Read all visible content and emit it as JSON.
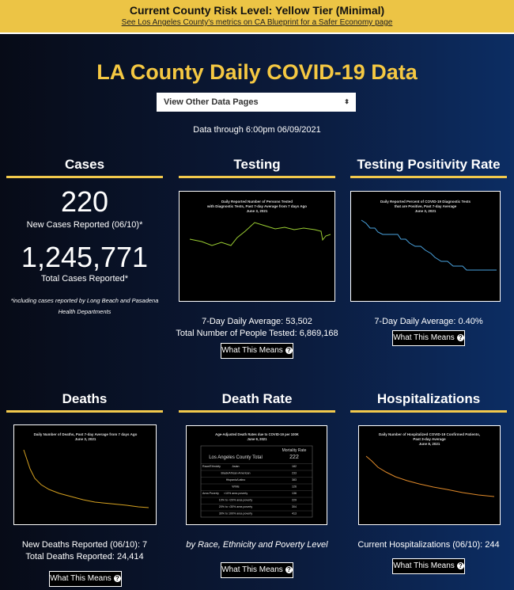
{
  "banner": {
    "title": "Current County Risk Level: Yellow Tier (Minimal)",
    "link": "See Los Angeles County's metrics on CA Blueprint for a Safer Economy page"
  },
  "header": {
    "title": "LA County Daily COVID-19 Data",
    "select": "View Other Data Pages",
    "date": "Data through 6:00pm 06/09/2021"
  },
  "button": "What This Means",
  "cases": {
    "title": "Cases",
    "new_value": "220",
    "new_label": "New Cases Reported (06/10)*",
    "total_value": "1,245,771",
    "total_label": "Total Cases Reported*",
    "note": [
      "*including cases reported by Long Beach and Pasadena",
      "Health Departments"
    ]
  },
  "testing": {
    "title": "Testing",
    "chart_title": [
      "Daily Reported Number of Persons Tested",
      "with Diagnostic Tests, Past 7-day Average from 7 days Ago",
      "June 3, 2021"
    ],
    "stats": [
      "7-Day Daily Average: 53,502",
      "Total Number of People Tested: 6,869,168"
    ]
  },
  "positivity": {
    "title": "Testing Positivity Rate",
    "chart_title": [
      "Daily Reported Percent of COVID-19 Diagnostic Tests",
      "that are Positive, Past 7-day Average",
      "June 3, 2021"
    ],
    "stats": [
      "7-Day Daily Average: 0.40%"
    ]
  },
  "deaths": {
    "title": "Deaths",
    "chart_title": [
      "Daily Number of Deaths, Past 7-day Average from 7 days Ago",
      "June 3, 2021"
    ],
    "stats": [
      "New Deaths Reported (06/10): 7",
      "Total Deaths Reported: 24,414"
    ]
  },
  "death_rate": {
    "title": "Death Rate",
    "chart_title": [
      "Age-Adjusted Death Rates due to COVID-19 per 100K",
      "June 9, 2021"
    ],
    "table": {
      "header": "Mortality Rate",
      "total_label": "Los Angeles County Total",
      "total_value": "222",
      "rows": [
        [
          "Race/Ethnicity",
          "Asian",
          "182"
        ],
        [
          "",
          "Black/African American",
          "233"
        ],
        [
          "",
          "Hispanic/Latino",
          "383"
        ],
        [
          "",
          "White",
          "126"
        ],
        [
          "Area Poverty",
          "<10% area poverty",
          "136"
        ],
        [
          "",
          "10% to <20% area poverty",
          "229"
        ],
        [
          "",
          "20% to <30% area poverty",
          "304"
        ],
        [
          "",
          "30% to 100% area poverty",
          "413"
        ]
      ]
    },
    "caption": "by Race, Ethnicity and Poverty Level"
  },
  "hospitalizations": {
    "title": "Hospitalizations",
    "chart_title": [
      "Daily Number of Hospitalized COVID-19 Confirmed Patients,",
      "Past 3-day Average",
      "June 8, 2021"
    ],
    "stats": [
      "Current Hospitalizations (06/10): 244"
    ]
  }
}
